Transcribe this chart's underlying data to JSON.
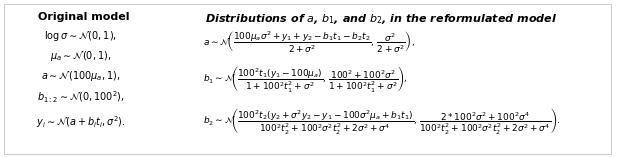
{
  "title_left": "Original model",
  "title_right": "Distributions of $a$, $b_1$, and $b_2$, in the reformulated model",
  "left_lines": [
    "$\\log \\sigma \\sim \\mathcal{N}(0,1),$",
    "$\\mu_a \\sim \\mathcal{N}(0,1),$",
    "$a \\sim \\mathcal{N}(100\\mu_a, 1),$",
    "$b_{1:2} \\sim \\mathcal{N}(0, 100^2),$",
    "$y_i \\sim \\mathcal{N}(a + b_i t_i, \\sigma^2).$"
  ],
  "right_lines": [
    "$a \\sim \\mathcal{N}\\!\\left(\\dfrac{100\\mu_a\\sigma^2 + y_1 + y_2 - b_1 t_1 - b_2 t_2}{2 + \\sigma^2},\\, \\dfrac{\\sigma^2}{2 + \\sigma^2}\\right),$",
    "$b_1 \\sim \\mathcal{N}\\!\\left(\\dfrac{100^2 t_1(y_1 - 100\\mu_a)}{1 + 100^2 t_1^2 + \\sigma^2},\\, \\dfrac{100^2 + 100^2\\sigma^2}{1 + 100^2 t_1^2 + \\sigma^2}\\right),$",
    "$b_2 \\sim \\mathcal{N}\\!\\left(\\dfrac{100^2 t_2(y_2 + \\sigma^2 y_2 - y_1 - 100\\sigma^2\\mu_a + b_1 t_1)}{100^2 t_2^2 + 100^2\\sigma^2 t_2^2 + 2\\sigma^2 + \\sigma^4},\\, \\dfrac{2 * 100^2\\sigma^2 + 100^2\\sigma^4}{100^2 t_2^2 + 100^2\\sigma^2 t_2^2 + 2\\sigma^2 + \\sigma^4}\\right).$"
  ],
  "background_color": "#ffffff",
  "text_color": "#000000",
  "border_color": "#cccccc"
}
